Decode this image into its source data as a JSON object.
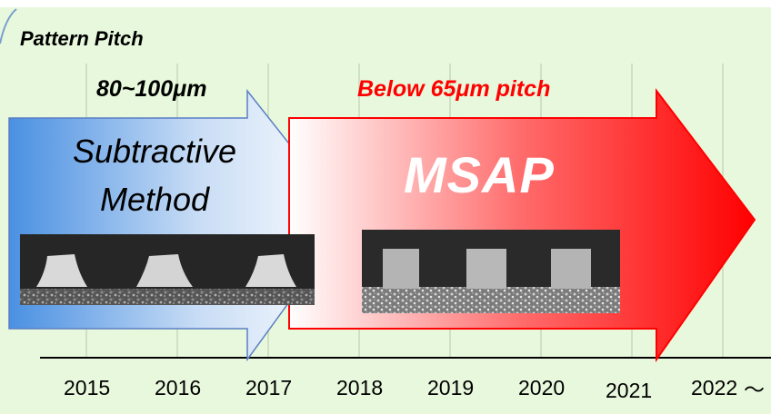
{
  "diagram": {
    "pattern_pitch_label": "Pattern Pitch",
    "subtractive": {
      "pitch": "80~100μm",
      "title_line1": "Subtractive",
      "title_line2": "Method"
    },
    "msap": {
      "pitch": "Below 65μm pitch",
      "title": "MSAP"
    },
    "timeline": {
      "years": [
        "2015",
        "2016",
        "2017",
        "2018",
        "2019",
        "2020",
        "2021",
        "2022"
      ],
      "end_mark": "〜"
    },
    "colors": {
      "background": "#e8f8dc",
      "subtractive_arrow": "#4a90e2",
      "msap_arrow": "#ff0000",
      "pitch_highlight": "#ff0000"
    }
  }
}
